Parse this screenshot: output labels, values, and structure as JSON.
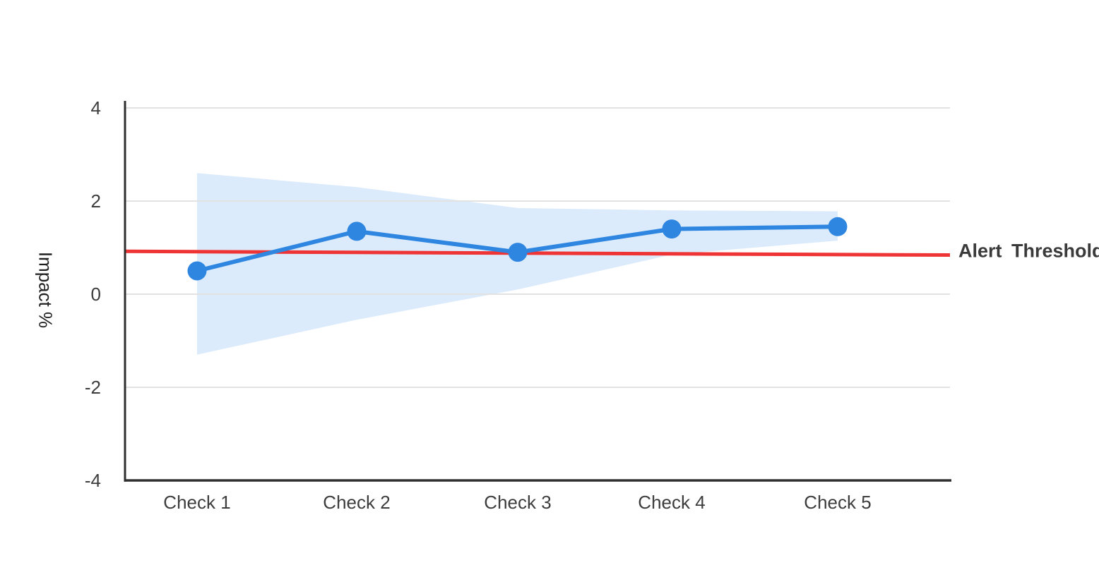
{
  "chart_data": {
    "type": "line",
    "title": "",
    "xlabel": "",
    "ylabel": "Impact %",
    "categories": [
      "Check 1",
      "Check 2",
      "Check 3",
      "Check 4",
      "Check 5"
    ],
    "series": [
      {
        "name": "Impact",
        "role": "main-line",
        "values": [
          0.5,
          1.35,
          0.9,
          1.4,
          1.45
        ]
      },
      {
        "name": "Confidence band upper",
        "role": "band-upper",
        "values": [
          2.6,
          2.3,
          1.85,
          1.8,
          1.78
        ]
      },
      {
        "name": "Confidence band lower",
        "role": "band-lower",
        "values": [
          -1.3,
          -0.55,
          0.1,
          0.85,
          1.15
        ]
      }
    ],
    "threshold": {
      "label": "Alert Threshold",
      "start_value": 0.92,
      "end_value": 0.84
    },
    "yticks": [
      4,
      2,
      0,
      -2,
      -4
    ],
    "ylim": [
      -4,
      4
    ],
    "grid": true,
    "legend_position": "threshold label at right end of line"
  },
  "colors": {
    "series_line": "#2e86e0",
    "marker": "#2e86e0",
    "band_fill": "#dcebfb",
    "threshold_line": "#ee3434",
    "gridline": "#e2e2e2",
    "axis": "#2f2f2f",
    "tick_text": "#3d3d3d",
    "ylabel_text": "#1f1f1f",
    "threshold_text": "#3a3a3a",
    "background": "#ffffff"
  }
}
